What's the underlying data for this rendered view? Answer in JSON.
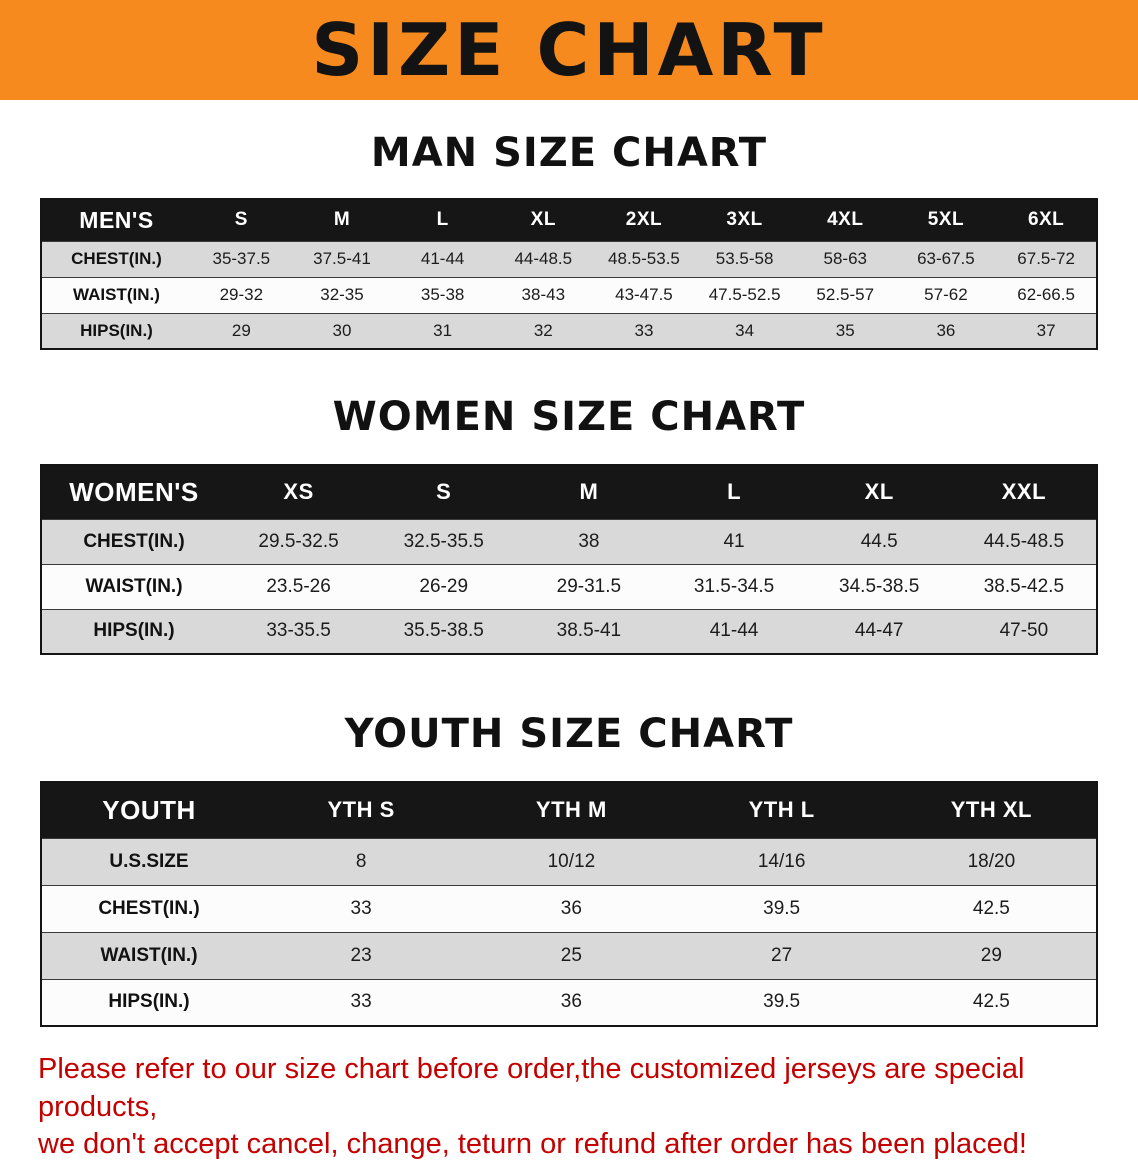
{
  "banner": {
    "title": "SIZE CHART"
  },
  "colors": {
    "banner_bg": "#F68A1E",
    "table_header_bg": "#161616",
    "stripe_row_bg": "#d9d9d9",
    "disclaimer_text": "#C40000"
  },
  "men": {
    "heading": "MAN SIZE CHART",
    "table": {
      "header": [
        "MEN'S",
        "S",
        "M",
        "L",
        "XL",
        "2XL",
        "3XL",
        "4XL",
        "5XL",
        "6XL"
      ],
      "rows": [
        [
          "CHEST(IN.)",
          "35-37.5",
          "37.5-41",
          "41-44",
          "44-48.5",
          "48.5-53.5",
          "53.5-58",
          "58-63",
          "63-67.5",
          "67.5-72"
        ],
        [
          "WAIST(IN.)",
          "29-32",
          "32-35",
          "35-38",
          "38-43",
          "43-47.5",
          "47.5-52.5",
          "52.5-57",
          "57-62",
          "62-66.5"
        ],
        [
          "HIPS(IN.)",
          "29",
          "30",
          "31",
          "32",
          "33",
          "34",
          "35",
          "36",
          "37"
        ]
      ]
    }
  },
  "women": {
    "heading": "WOMEN SIZE CHART",
    "table": {
      "header": [
        "WOMEN'S",
        "XS",
        "S",
        "M",
        "L",
        "XL",
        "XXL"
      ],
      "rows": [
        [
          "CHEST(IN.)",
          "29.5-32.5",
          "32.5-35.5",
          "38",
          "41",
          "44.5",
          "44.5-48.5"
        ],
        [
          "WAIST(IN.)",
          "23.5-26",
          "26-29",
          "29-31.5",
          "31.5-34.5",
          "34.5-38.5",
          "38.5-42.5"
        ],
        [
          "HIPS(IN.)",
          "33-35.5",
          "35.5-38.5",
          "38.5-41",
          "41-44",
          "44-47",
          "47-50"
        ]
      ]
    }
  },
  "youth": {
    "heading": "YOUTH SIZE CHART",
    "table": {
      "header": [
        "YOUTH",
        "YTH S",
        "YTH M",
        "YTH L",
        "YTH XL"
      ],
      "rows": [
        [
          "U.S.SIZE",
          "8",
          "10/12",
          "14/16",
          "18/20"
        ],
        [
          "CHEST(IN.)",
          "33",
          "36",
          "39.5",
          "42.5"
        ],
        [
          "WAIST(IN.)",
          "23",
          "25",
          "27",
          "29"
        ],
        [
          "HIPS(IN.)",
          "33",
          "36",
          "39.5",
          "42.5"
        ]
      ]
    }
  },
  "disclaimer": {
    "line1": "Please refer to our size chart before order,the customized jerseys are special products,",
    "line2": "we don't accept cancel, change, teturn or refund after order has been placed!"
  }
}
